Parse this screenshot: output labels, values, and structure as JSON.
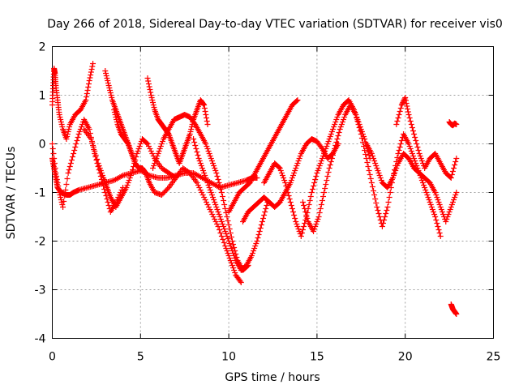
{
  "chart_data": {
    "type": "scatter",
    "title": "Day 266 of 2018, Sidereal Day-to-day VTEC variation (SDTVAR) for receiver vis0",
    "xlabel": "GPS time / hours",
    "ylabel": "SDTVAR / TECUs",
    "xlim": [
      0,
      25
    ],
    "ylim": [
      -4,
      2
    ],
    "xticks": [
      0,
      5,
      10,
      15,
      20,
      25
    ],
    "yticks": [
      -4,
      -3,
      -2,
      -1,
      0,
      1,
      2
    ],
    "xtick_labels": [
      "0",
      "5",
      "10",
      "15",
      "20",
      "25"
    ],
    "ytick_labels": [
      "-4",
      "-3",
      "-2",
      "-1",
      "0",
      "1",
      "2"
    ],
    "grid": true,
    "marker": "+",
    "color": "#ff0000",
    "series": [
      {
        "name": "track-1",
        "x": [
          0.0,
          0.1,
          0.2,
          0.3,
          0.5,
          0.8,
          1.0,
          1.2,
          1.5,
          2.0,
          2.5,
          3.0,
          3.5,
          4.0,
          4.5,
          5.0,
          5.5,
          6.0,
          6.5,
          7.0,
          7.5,
          8.0,
          8.5,
          9.0,
          9.5,
          10.0,
          10.5,
          11.0,
          11.3,
          11.6
        ],
        "y": [
          -0.3,
          -0.5,
          -0.7,
          -0.9,
          -1.0,
          -1.05,
          -1.05,
          -1.0,
          -0.95,
          -0.9,
          -0.85,
          -0.8,
          -0.75,
          -0.65,
          -0.6,
          -0.55,
          -0.65,
          -0.7,
          -0.7,
          -0.65,
          -0.6,
          -0.6,
          -0.7,
          -0.8,
          -0.9,
          -0.85,
          -0.8,
          -0.75,
          -0.7,
          -0.7
        ]
      },
      {
        "name": "track-2",
        "x": [
          0.0,
          0.05,
          0.1,
          0.15,
          0.2,
          0.3,
          0.4,
          0.6,
          0.8,
          1.0,
          1.3,
          1.6,
          1.9,
          2.1,
          2.3
        ],
        "y": [
          0.8,
          1.2,
          1.55,
          1.45,
          1.2,
          0.9,
          0.6,
          0.3,
          0.1,
          0.4,
          0.6,
          0.7,
          0.9,
          1.3,
          1.65
        ]
      },
      {
        "name": "track-3",
        "x": [
          0.0,
          0.2,
          0.4,
          0.6,
          0.9,
          1.2,
          1.5,
          1.8,
          2.1,
          2.4,
          2.7,
          3.0,
          3.3,
          3.6,
          4.0
        ],
        "y": [
          0.0,
          -0.6,
          -1.0,
          -1.3,
          -0.6,
          -0.2,
          0.2,
          0.5,
          0.3,
          -0.2,
          -0.6,
          -1.0,
          -1.4,
          -1.2,
          -0.9
        ]
      },
      {
        "name": "track-4",
        "x": [
          1.8,
          2.2,
          2.6,
          2.9,
          3.1,
          3.3,
          3.6,
          3.9,
          4.2,
          4.5,
          4.8,
          5.1,
          5.4,
          5.8,
          6.2,
          6.6,
          7.0
        ],
        "y": [
          0.3,
          0.1,
          -0.4,
          -0.7,
          -0.9,
          -1.1,
          -1.3,
          -1.1,
          -0.9,
          -0.6,
          -0.2,
          0.1,
          0.0,
          -0.3,
          -0.5,
          -0.6,
          -0.7
        ]
      },
      {
        "name": "track-5",
        "x": [
          3.0,
          3.2,
          3.4,
          3.6,
          3.8,
          4.0,
          4.2,
          4.4,
          4.6
        ],
        "y": [
          1.5,
          1.2,
          0.9,
          0.7,
          0.5,
          0.3,
          0.1,
          -0.1,
          -0.3
        ]
      },
      {
        "name": "track-6",
        "x": [
          3.5,
          3.7,
          3.9,
          4.1,
          4.3,
          4.5,
          4.7,
          4.9,
          5.1,
          5.3,
          5.5,
          5.8,
          6.2,
          6.6,
          7.0,
          7.4,
          7.8,
          8.2,
          8.6,
          9.0,
          9.4,
          9.8,
          10.1,
          10.4,
          10.7
        ],
        "y": [
          0.7,
          0.4,
          0.2,
          0.1,
          0.0,
          -0.2,
          -0.4,
          -0.5,
          -0.5,
          -0.6,
          -0.8,
          -1.0,
          -1.05,
          -0.9,
          -0.7,
          -0.5,
          -0.6,
          -0.8,
          -1.1,
          -1.4,
          -1.7,
          -2.1,
          -2.4,
          -2.7,
          -2.85
        ]
      },
      {
        "name": "track-7",
        "x": [
          5.4,
          5.6,
          5.8,
          6.0,
          6.2,
          6.4,
          6.6,
          6.8,
          7.0,
          7.2,
          7.4,
          7.6,
          7.8,
          8.0,
          8.2,
          8.4,
          8.6,
          8.8
        ],
        "y": [
          1.35,
          1.0,
          0.7,
          0.5,
          0.4,
          0.3,
          0.2,
          0.0,
          -0.2,
          -0.4,
          -0.2,
          0.0,
          0.2,
          0.5,
          0.7,
          0.9,
          0.8,
          0.4
        ]
      },
      {
        "name": "track-8",
        "x": [
          5.7,
          6.0,
          6.3,
          6.6,
          6.9,
          7.2,
          7.5,
          7.8,
          8.1,
          8.4,
          8.7,
          9.0,
          9.3,
          9.6,
          9.9,
          10.2,
          10.5,
          10.8,
          11.1
        ],
        "y": [
          -0.5,
          -0.2,
          0.1,
          0.3,
          0.5,
          0.55,
          0.6,
          0.55,
          0.4,
          0.2,
          0.0,
          -0.3,
          -0.6,
          -1.0,
          -1.5,
          -2.0,
          -2.4,
          -2.6,
          -2.5
        ]
      },
      {
        "name": "track-9",
        "x": [
          8.0,
          8.3,
          8.6,
          8.9,
          9.2,
          9.5,
          9.8,
          10.1,
          10.4,
          10.7,
          11.0,
          11.3,
          11.6,
          11.9,
          12.2
        ],
        "y": [
          0.1,
          -0.3,
          -0.6,
          -0.9,
          -1.2,
          -1.5,
          -1.8,
          -2.1,
          -2.4,
          -2.6,
          -2.5,
          -2.3,
          -2.0,
          -1.6,
          -1.2
        ]
      },
      {
        "name": "track-10",
        "x": [
          10.0,
          10.3,
          10.6,
          10.9,
          11.2,
          11.5,
          11.8,
          12.1,
          12.4,
          12.7,
          13.0,
          13.3,
          13.6,
          13.9
        ],
        "y": [
          -1.4,
          -1.2,
          -1.0,
          -0.9,
          -0.8,
          -0.6,
          -0.4,
          -0.2,
          0.0,
          0.2,
          0.4,
          0.6,
          0.8,
          0.9
        ]
      },
      {
        "name": "track-11",
        "x": [
          10.8,
          11.1,
          11.4,
          11.7,
          12.0,
          12.3,
          12.6,
          12.9,
          13.2,
          13.5,
          13.8,
          14.1,
          14.4,
          14.7,
          15.0,
          15.3,
          15.6,
          15.9,
          16.2
        ],
        "y": [
          -1.6,
          -1.4,
          -1.3,
          -1.2,
          -1.1,
          -1.2,
          -1.3,
          -1.2,
          -1.0,
          -0.8,
          -0.5,
          -0.2,
          0.0,
          0.1,
          0.05,
          -0.1,
          -0.3,
          -0.2,
          0.0
        ]
      },
      {
        "name": "track-12",
        "x": [
          12.0,
          12.3,
          12.6,
          12.9,
          13.2,
          13.5,
          13.8,
          14.1,
          14.4,
          14.7,
          15.0,
          15.3,
          15.6,
          15.9,
          16.2,
          16.5,
          16.8,
          17.1,
          17.4,
          17.7,
          18.0
        ],
        "y": [
          -0.8,
          -0.6,
          -0.4,
          -0.5,
          -0.8,
          -1.2,
          -1.6,
          -1.9,
          -1.5,
          -1.0,
          -0.6,
          -0.3,
          0.0,
          0.3,
          0.6,
          0.8,
          0.9,
          0.7,
          0.4,
          0.1,
          -0.3
        ]
      },
      {
        "name": "track-13",
        "x": [
          14.2,
          14.5,
          14.8,
          15.1,
          15.4,
          15.7,
          16.0,
          16.3,
          16.6,
          16.9,
          17.2,
          17.5,
          17.8,
          18.1,
          18.4,
          18.7,
          19.0,
          19.3,
          19.6,
          19.9,
          20.2,
          20.5,
          20.8,
          21.1,
          21.4,
          21.7,
          22.0
        ],
        "y": [
          -1.2,
          -1.6,
          -1.8,
          -1.5,
          -1.0,
          -0.5,
          -0.1,
          0.3,
          0.6,
          0.8,
          0.6,
          0.2,
          -0.3,
          -0.8,
          -1.3,
          -1.7,
          -1.3,
          -0.7,
          -0.2,
          0.2,
          0.0,
          -0.3,
          -0.6,
          -0.9,
          -1.2,
          -1.5,
          -1.9
        ]
      },
      {
        "name": "track-14",
        "x": [
          17.8,
          18.1,
          18.4,
          18.7,
          19.0,
          19.3,
          19.6,
          19.9,
          20.2,
          20.5,
          20.8,
          21.1,
          21.4,
          21.7,
          22.0,
          22.3,
          22.6,
          22.9
        ],
        "y": [
          0.0,
          -0.2,
          -0.5,
          -0.8,
          -0.9,
          -0.7,
          -0.4,
          -0.2,
          -0.3,
          -0.5,
          -0.6,
          -0.7,
          -0.8,
          -1.0,
          -1.3,
          -1.6,
          -1.3,
          -1.0
        ]
      },
      {
        "name": "track-15",
        "x": [
          19.5,
          19.8,
          20.0,
          20.2,
          20.5,
          20.8,
          21.1,
          21.4,
          21.7,
          22.0,
          22.3,
          22.6,
          22.9
        ],
        "y": [
          0.4,
          0.8,
          0.95,
          0.6,
          0.2,
          -0.2,
          -0.5,
          -0.3,
          -0.2,
          -0.4,
          -0.6,
          -0.7,
          -0.3
        ]
      },
      {
        "name": "track-16",
        "x": [
          22.5,
          22.6,
          22.7,
          22.8,
          22.9
        ],
        "y": [
          0.45,
          0.4,
          0.38,
          0.42,
          0.4
        ]
      },
      {
        "name": "track-17",
        "x": [
          22.6,
          22.7,
          22.8,
          22.9
        ],
        "y": [
          -3.3,
          -3.4,
          -3.45,
          -3.5
        ]
      }
    ]
  }
}
